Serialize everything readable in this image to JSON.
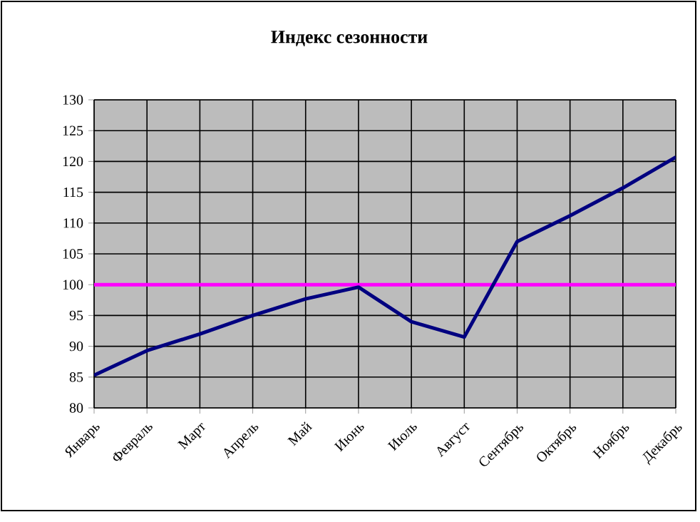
{
  "chart_data": {
    "type": "line",
    "title": "Индекс сезонности",
    "categories": [
      "Январь",
      "Февраль",
      "Март",
      "Апрель",
      "Май",
      "Июнь",
      "Июль",
      "Август",
      "Сентябрь",
      "Октябрь",
      "Ноябрь",
      "Декабрь"
    ],
    "series": [
      {
        "color": "#000080",
        "values": [
          85.3,
          89.3,
          92,
          95,
          97.7,
          99.6,
          94,
          91.5,
          107,
          111.2,
          115.7,
          120.7
        ]
      }
    ],
    "ylim": [
      80,
      130
    ],
    "yticks": [
      80,
      85,
      90,
      95,
      100,
      105,
      110,
      115,
      120,
      125,
      130
    ],
    "ref_lines": [
      {
        "axis": "y",
        "value": 100,
        "color": "#ff00ff"
      }
    ],
    "grid": true,
    "marker": "none",
    "line_style": "solid"
  }
}
